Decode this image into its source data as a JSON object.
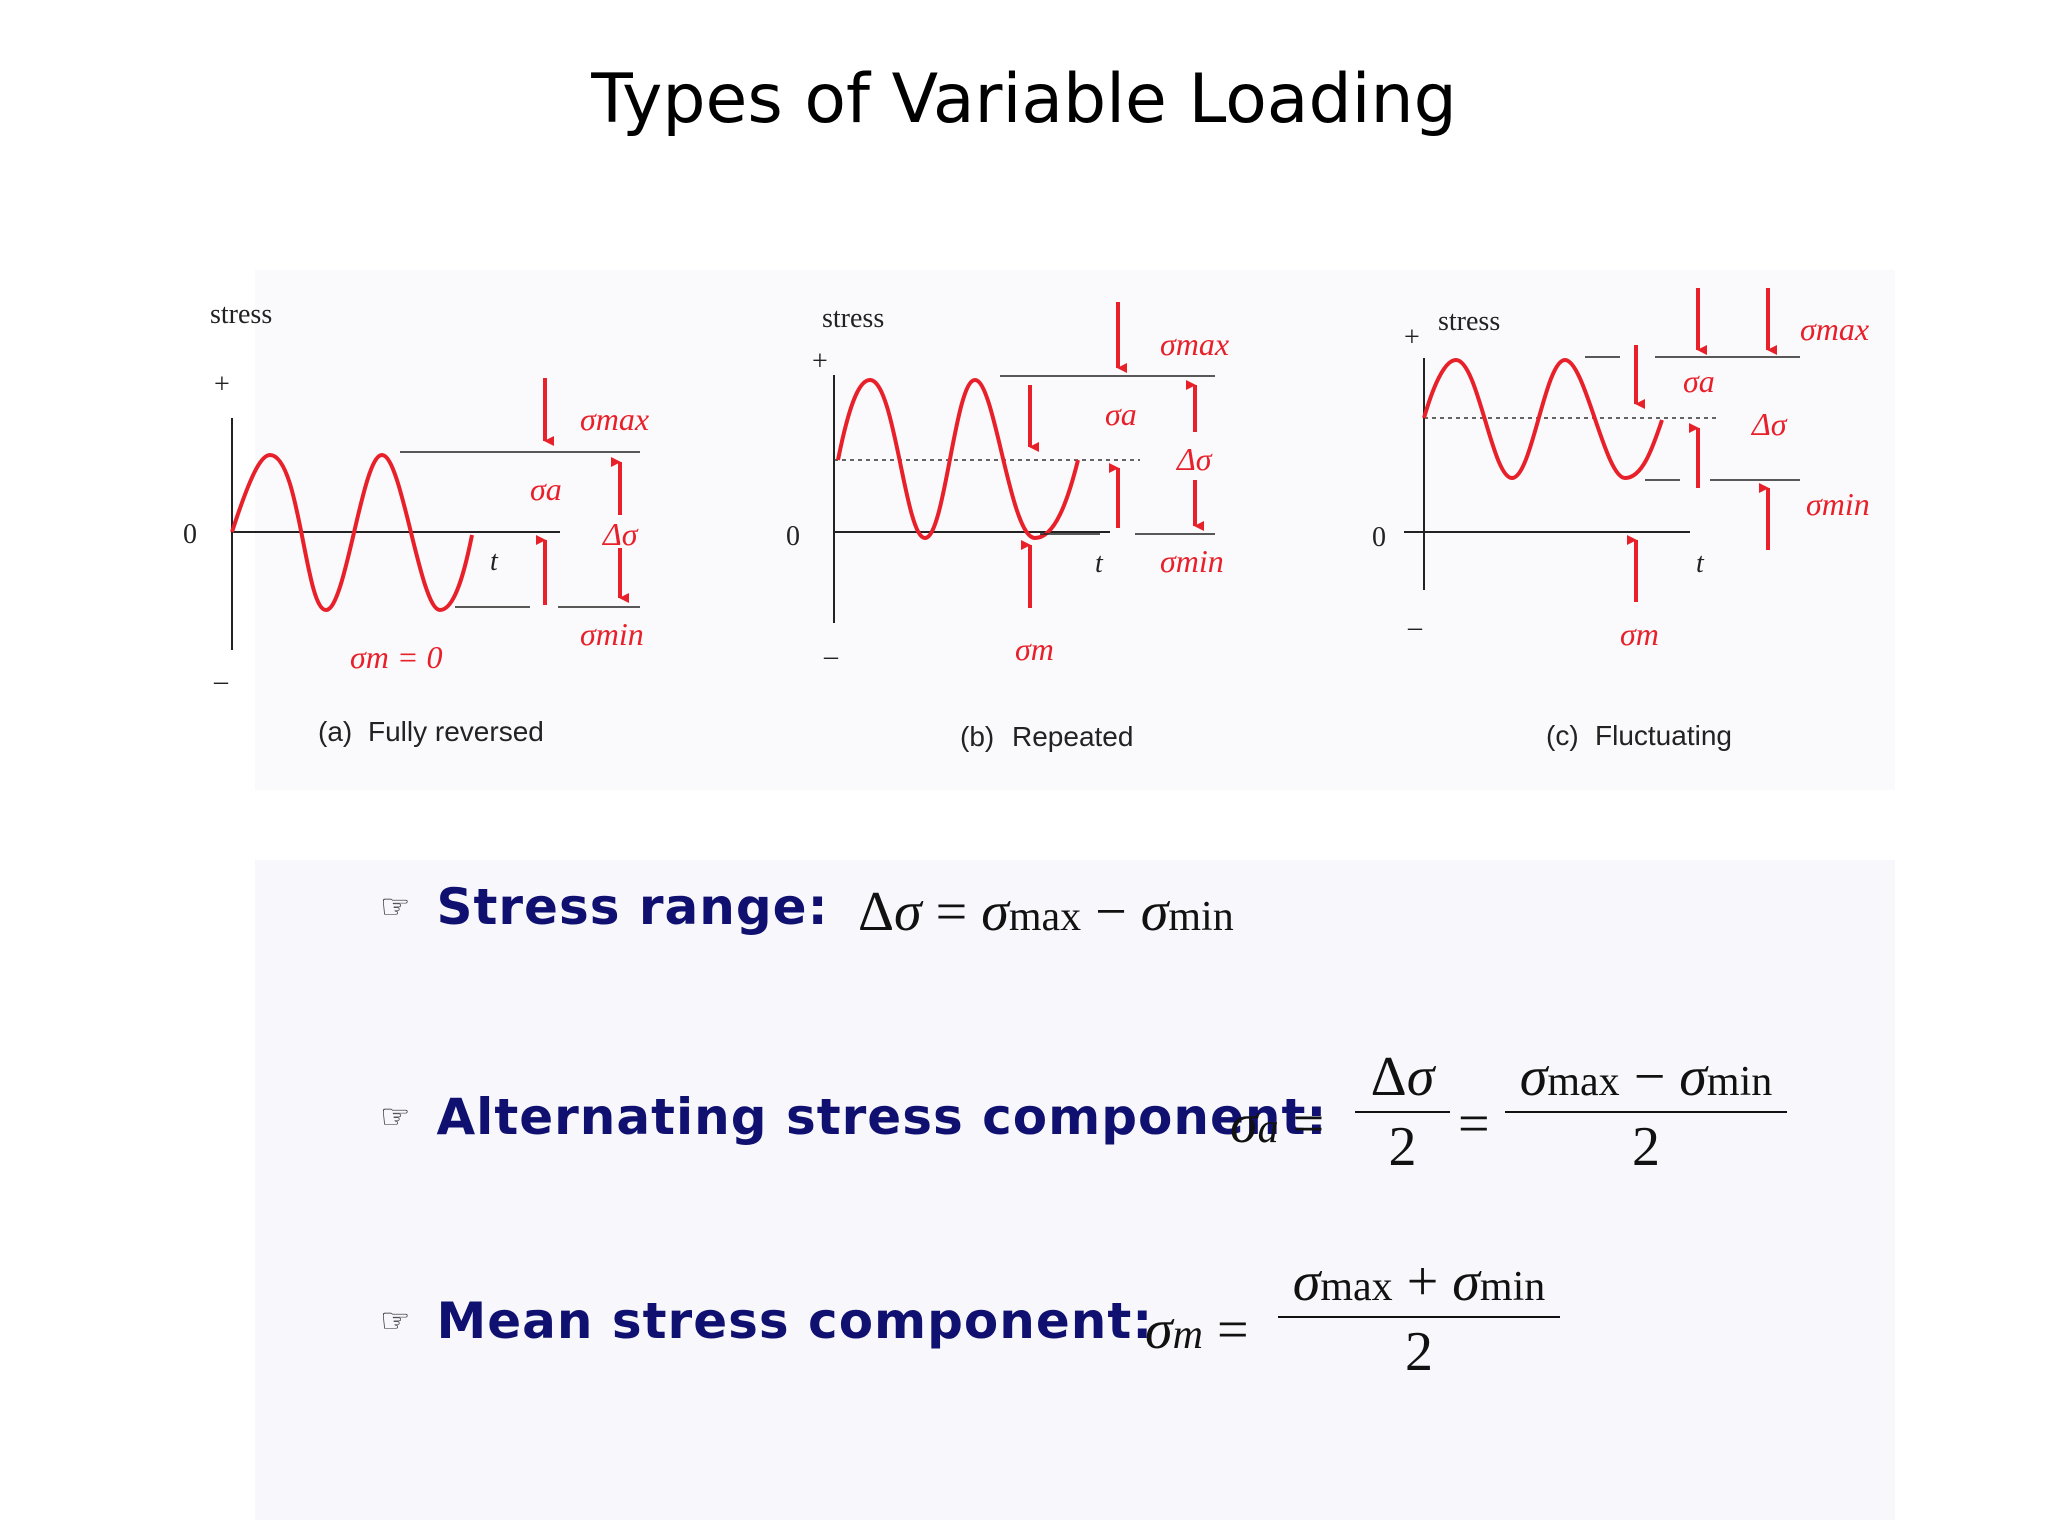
{
  "title": "Types of Variable Loading",
  "panels": [
    {
      "stress_label": "stress",
      "plus": "+",
      "minus": "–",
      "zero": "0",
      "t": "t",
      "sigma_max": "σmax",
      "sigma_a": "σa",
      "delta_sigma": "Δσ",
      "sigma_min": "σmin",
      "sigma_m": "σm = 0",
      "caption_letter": "(a)",
      "caption": "Fully reversed"
    },
    {
      "stress_label": "stress",
      "plus": "+",
      "minus": "–",
      "zero": "0",
      "t": "t",
      "sigma_max": "σmax",
      "sigma_a": "σa",
      "delta_sigma": "Δσ",
      "sigma_min": "σmin",
      "sigma_m": "σm",
      "caption_letter": "(b)",
      "caption": "Repeated"
    },
    {
      "stress_label": "stress",
      "plus": "+",
      "minus": "–",
      "zero": "0",
      "t": "t",
      "sigma_max": "σmax",
      "sigma_a": "σa",
      "delta_sigma": "Δσ",
      "sigma_min": "σmin",
      "sigma_m": "σm",
      "caption_letter": "(c)",
      "caption": "Fluctuating"
    }
  ],
  "formulas": {
    "bullet": "☞",
    "range_label": "Stress range:",
    "alt_label": "Alternating stress component:",
    "mean_label": "Mean stress component:"
  },
  "colors": {
    "accent": "#e8202a",
    "label": "#101070"
  }
}
